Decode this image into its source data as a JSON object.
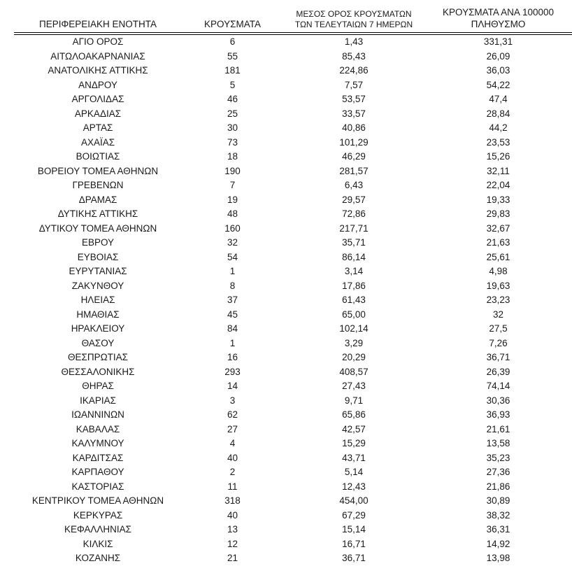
{
  "page": {
    "background_color": "#ffffff",
    "text_color": "#1a1a1a",
    "rule_color": "#000000"
  },
  "table": {
    "columns": [
      {
        "id": "region",
        "label": "ΠΕΡΙΦΕΡΕΙΑΚΗ ΕΝΟΤΗΤΑ"
      },
      {
        "id": "cases",
        "label": "ΚΡΟΥΣΜΑΤΑ"
      },
      {
        "id": "avg7",
        "label_line1": "ΜΕΣΟΣ ΟΡΟΣ ΚΡΟΥΣΜΑΤΩΝ",
        "label_line2": "ΤΩΝ ΤΕΛΕΥΤΑΙΩΝ 7 ΗΜΕΡΩΝ"
      },
      {
        "id": "per100k",
        "label_line1": "ΚΡΟΥΣΜΑΤΑ ΑΝΑ 100000",
        "label_line2": "ΠΛΗΘΥΣΜΟ"
      }
    ],
    "rows": [
      [
        "ΑΓΙΟ ΟΡΟΣ",
        "6",
        "1,43",
        "331,31"
      ],
      [
        "ΑΙΤΩΛΟΑΚΑΡΝΑΝΙΑΣ",
        "55",
        "85,43",
        "26,09"
      ],
      [
        "ΑΝΑΤΟΛΙΚΗΣ ΑΤΤΙΚΗΣ",
        "181",
        "224,86",
        "36,03"
      ],
      [
        "ΑΝΔΡΟΥ",
        "5",
        "7,57",
        "54,22"
      ],
      [
        "ΑΡΓΟΛΙΔΑΣ",
        "46",
        "53,57",
        "47,4"
      ],
      [
        "ΑΡΚΑΔΙΑΣ",
        "25",
        "33,57",
        "28,84"
      ],
      [
        "ΑΡΤΑΣ",
        "30",
        "40,86",
        "44,2"
      ],
      [
        "ΑΧΑΪΑΣ",
        "73",
        "101,29",
        "23,53"
      ],
      [
        "ΒΟΙΩΤΙΑΣ",
        "18",
        "46,29",
        "15,26"
      ],
      [
        "ΒΟΡΕΙΟΥ ΤΟΜΕΑ ΑΘΗΝΩΝ",
        "190",
        "281,57",
        "32,11"
      ],
      [
        "ΓΡΕΒΕΝΩΝ",
        "7",
        "6,43",
        "22,04"
      ],
      [
        "ΔΡΑΜΑΣ",
        "19",
        "29,57",
        "19,33"
      ],
      [
        "ΔΥΤΙΚΗΣ ΑΤΤΙΚΗΣ",
        "48",
        "72,86",
        "29,83"
      ],
      [
        "ΔΥΤΙΚΟΥ ΤΟΜΕΑ ΑΘΗΝΩΝ",
        "160",
        "217,71",
        "32,67"
      ],
      [
        "ΕΒΡΟΥ",
        "32",
        "35,71",
        "21,63"
      ],
      [
        "ΕΥΒΟΙΑΣ",
        "54",
        "86,14",
        "25,61"
      ],
      [
        "ΕΥΡΥΤΑΝΙΑΣ",
        "1",
        "3,14",
        "4,98"
      ],
      [
        "ΖΑΚΥΝΘΟΥ",
        "8",
        "17,86",
        "19,63"
      ],
      [
        "ΗΛΕΙΑΣ",
        "37",
        "61,43",
        "23,23"
      ],
      [
        "ΗΜΑΘΙΑΣ",
        "45",
        "65,00",
        "32"
      ],
      [
        "ΗΡΑΚΛΕΙΟΥ",
        "84",
        "102,14",
        "27,5"
      ],
      [
        "ΘΑΣΟΥ",
        "1",
        "3,29",
        "7,26"
      ],
      [
        "ΘΕΣΠΡΩΤΙΑΣ",
        "16",
        "20,29",
        "36,71"
      ],
      [
        "ΘΕΣΣΑΛΟΝΙΚΗΣ",
        "293",
        "408,57",
        "26,39"
      ],
      [
        "ΘΗΡΑΣ",
        "14",
        "27,43",
        "74,14"
      ],
      [
        "ΙΚΑΡΙΑΣ",
        "3",
        "9,71",
        "30,36"
      ],
      [
        "ΙΩΑΝΝΙΝΩΝ",
        "62",
        "65,86",
        "36,93"
      ],
      [
        "ΚΑΒΑΛΑΣ",
        "27",
        "42,57",
        "21,61"
      ],
      [
        "ΚΑΛΥΜΝΟΥ",
        "4",
        "15,29",
        "13,58"
      ],
      [
        "ΚΑΡΔΙΤΣΑΣ",
        "40",
        "43,71",
        "35,23"
      ],
      [
        "ΚΑΡΠΑΘΟΥ",
        "2",
        "5,14",
        "27,36"
      ],
      [
        "ΚΑΣΤΟΡΙΑΣ",
        "11",
        "12,43",
        "21,86"
      ],
      [
        "ΚΕΝΤΡΙΚΟΥ ΤΟΜΕΑ ΑΘΗΝΩΝ",
        "318",
        "454,00",
        "30,89"
      ],
      [
        "ΚΕΡΚΥΡΑΣ",
        "40",
        "67,29",
        "38,32"
      ],
      [
        "ΚΕΦΑΛΛΗΝΙΑΣ",
        "13",
        "15,14",
        "36,31"
      ],
      [
        "ΚΙΛΚΙΣ",
        "12",
        "16,71",
        "14,92"
      ],
      [
        "ΚΟΖΑΝΗΣ",
        "21",
        "36,71",
        "13,98"
      ]
    ]
  }
}
